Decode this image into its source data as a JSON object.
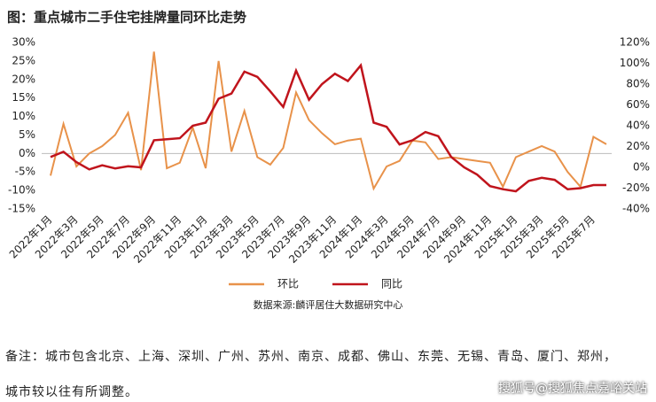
{
  "chart_data": {
    "type": "line",
    "title": "图：重点城市二手住宅挂牌量同环比走势",
    "categories": [
      "2022年1月",
      null,
      "2022年3月",
      null,
      "2022年5月",
      null,
      "2022年7月",
      null,
      "2022年9月",
      null,
      "2022年11月",
      null,
      "2023年1月",
      null,
      "2023年3月",
      null,
      "2023年5月",
      null,
      "2023年7月",
      null,
      "2023年9月",
      null,
      "2023年11月",
      null,
      "2024年1月",
      null,
      "2024年3月",
      null,
      "2024年5月",
      null,
      "2024年7月",
      null,
      "2024年9月",
      null,
      "2024年11月",
      null,
      "2025年1月",
      null,
      "2025年3月",
      null,
      "2025年5月",
      null,
      "2025年7月",
      null
    ],
    "series": [
      {
        "name": "环比",
        "color": "#e8924a",
        "values": [
          -6,
          8,
          -3.5,
          0,
          2,
          5,
          11,
          -4.5,
          27.5,
          -4,
          -2.5,
          7,
          -4,
          25,
          0.5,
          11.5,
          -1,
          -3,
          1.5,
          16.5,
          9,
          5.5,
          2.5,
          3.5,
          4,
          -9.5,
          -3.5,
          -2,
          3.5,
          3,
          -1.5,
          -1,
          -1.5,
          -2,
          -2.5,
          -9,
          -1,
          0.5,
          2,
          0.5,
          -5,
          -9,
          4.5,
          2.5
        ]
      },
      {
        "name": "同比",
        "color": "#c0141c",
        "axis": "y2",
        "values": [
          10,
          15,
          5,
          -2,
          2,
          -1,
          1,
          0,
          26,
          27,
          28,
          40,
          43,
          66,
          71,
          92,
          87,
          73,
          58,
          93,
          65,
          80,
          90,
          83,
          98,
          43,
          39,
          22,
          26,
          34,
          30,
          10,
          0,
          -7,
          -18,
          -21,
          -23,
          -13,
          -10,
          -12,
          -21,
          -20,
          -17,
          -17
        ]
      }
    ],
    "ylim": [
      -15,
      30
    ],
    "yticks": [
      {
        "value": -15,
        "label": "-15%"
      },
      {
        "value": -10,
        "label": "-10%"
      },
      {
        "value": -5,
        "label": "-5%"
      },
      {
        "value": 0,
        "label": "0%"
      },
      {
        "value": 5,
        "label": "5%"
      },
      {
        "value": 10,
        "label": "10%"
      },
      {
        "value": 15,
        "label": "15%"
      },
      {
        "value": 20,
        "label": "20%"
      },
      {
        "value": 25,
        "label": "25%"
      },
      {
        "value": 30,
        "label": "30%"
      }
    ],
    "y2lim": [
      -40,
      120
    ],
    "y2ticks": [
      {
        "value": -40,
        "label": "-40%"
      },
      {
        "value": -20,
        "label": "-20%"
      },
      {
        "value": 0,
        "label": "0%"
      },
      {
        "value": 20,
        "label": "20%"
      },
      {
        "value": 40,
        "label": "40%"
      },
      {
        "value": 60,
        "label": "60%"
      },
      {
        "value": 80,
        "label": "80%"
      },
      {
        "value": 100,
        "label": "100%"
      },
      {
        "value": 120,
        "label": "120%"
      }
    ],
    "source": "数据来源:麟评居住大数据研究中心"
  },
  "note": [
    "备注：城市包含北京、上海、深圳、广州、苏州、南京、成都、佛山、东莞、无锡、青岛、厦门、郑州，",
    "城市较以往有所调整。"
  ],
  "watermark": "搜狐号@搜狐焦点嘉峪关站"
}
